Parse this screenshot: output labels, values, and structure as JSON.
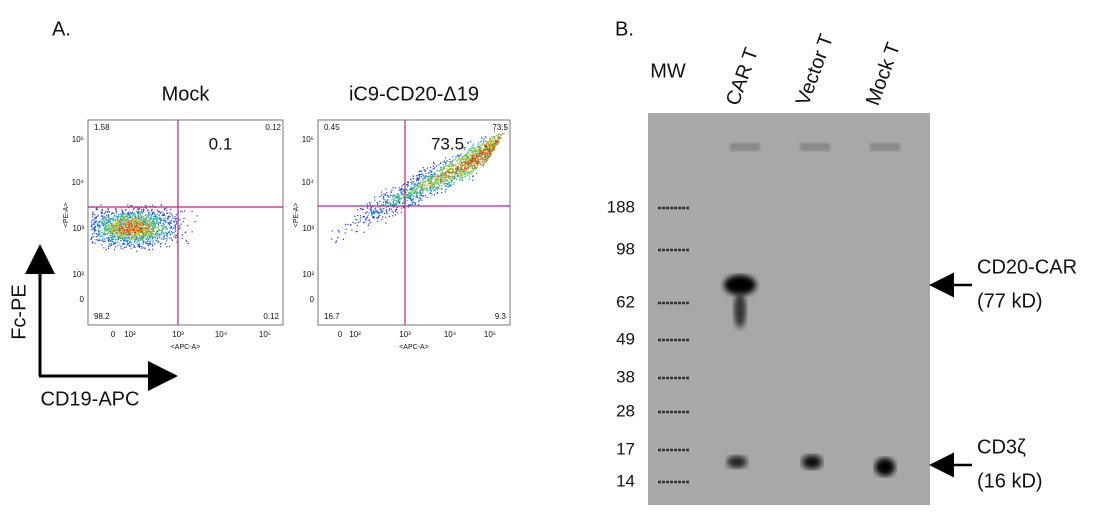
{
  "panel_a": {
    "label": "A.",
    "y_axis_label": "Fc-PE",
    "x_axis_label": "CD19-APC",
    "plots": [
      {
        "title": "Mock",
        "y_param": "<PE-A>",
        "x_param": "<APC-A>",
        "quadrants": {
          "upper_left": "1.58",
          "upper_right_big": "0.1",
          "upper_right": "0.12",
          "lower_left": "98.2",
          "lower_right": "0.12"
        },
        "yticks": [
          "10⁵",
          "10⁴",
          "10³",
          "10²",
          "0"
        ],
        "xticks": [
          "0",
          "10²",
          "10³",
          "10⁴",
          "10⁵"
        ]
      },
      {
        "title": "iC9-CD20-Δ19",
        "y_param": "<PE-A>",
        "x_param": "<APC-A>",
        "quadrants": {
          "upper_left": "0.45",
          "upper_right_big": "73.5",
          "upper_right": "73.5",
          "lower_left": "16.7",
          "lower_right": "9.3"
        },
        "yticks": [
          "10⁵",
          "10⁴",
          "10³",
          "10²",
          "0"
        ],
        "xticks": [
          "0",
          "10²",
          "10³",
          "10⁴",
          "10⁵"
        ]
      }
    ]
  },
  "panel_b": {
    "label": "B.",
    "mw_header": "MW",
    "lanes": [
      "CAR T",
      "Vector T",
      "Mock T"
    ],
    "mw_markers": [
      "188",
      "98",
      "62",
      "49",
      "38",
      "28",
      "17",
      "14"
    ],
    "annotations": [
      {
        "name": "CD20-CAR",
        "size": "(77 kD)"
      },
      {
        "name": "CD3ζ",
        "size": "(16 kD)"
      }
    ]
  }
}
